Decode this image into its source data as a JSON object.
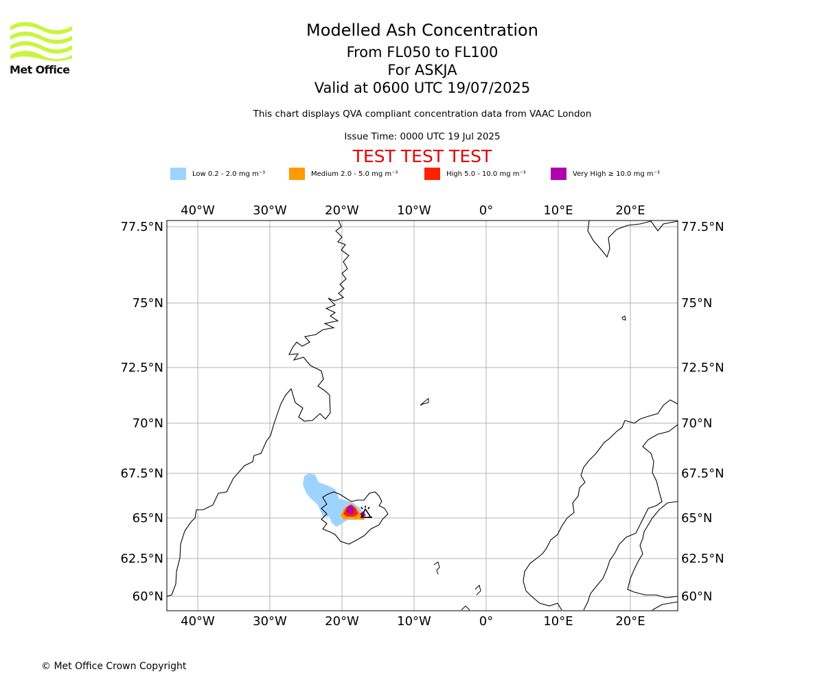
{
  "header": {
    "logo_text": "Met Office",
    "title": "Modelled Ash Concentration",
    "level_range": "From FL050 to FL100",
    "volcano": "For ASKJA",
    "valid_time": "Valid at 0600 UTC 19/07/2025",
    "description": "This chart displays QVA compliant concentration data from VAAC London",
    "issue_time": "Issue Time: 0000 UTC 19 Jul 2025",
    "test_banner": "TEST TEST TEST"
  },
  "legend": [
    {
      "label": "Low 0.2 - 2.0 mg m⁻³",
      "color": "#9fd3ff"
    },
    {
      "label": "Medium 2.0 - 5.0 mg m⁻³",
      "color": "#ff9a00"
    },
    {
      "label": "High 5.0 - 10.0 mg m⁻³",
      "color": "#ff2200"
    },
    {
      "label": "Very High ≥ 10.0 mg m⁻³",
      "color": "#b000b0"
    }
  ],
  "map": {
    "lon_ticks": [
      "40°W",
      "30°W",
      "20°W",
      "10°W",
      "0°",
      "10°E",
      "20°E"
    ],
    "lat_ticks": [
      "77.5°N",
      "75°N",
      "72.5°N",
      "70°N",
      "67.5°N",
      "65°N",
      "62.5°N",
      "60°N"
    ],
    "grid": true,
    "coastline_color": "#000000"
  },
  "footer": {
    "copyright": "© Met Office Crown Copyright"
  }
}
